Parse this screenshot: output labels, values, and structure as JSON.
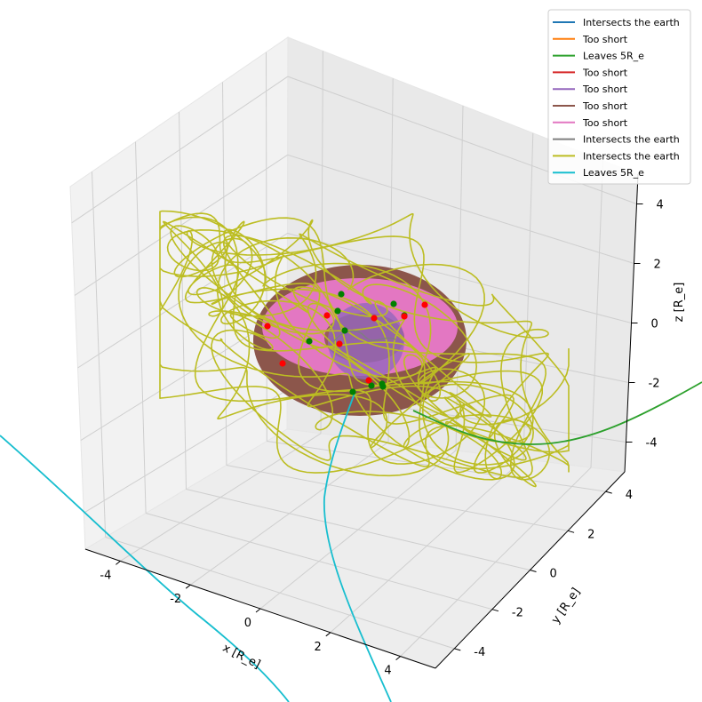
{
  "chart_data": {
    "type": "line",
    "projection": "3d",
    "title": "",
    "xlabel": "x [R_e]",
    "ylabel": "y [R_e]",
    "zlabel": "z [R_e]",
    "xlim": [
      -5,
      5
    ],
    "ylim": [
      -5,
      5
    ],
    "zlim": [
      -5,
      5
    ],
    "x_ticks": [
      "-4",
      "-2",
      "0",
      "2",
      "4"
    ],
    "y_ticks": [
      "-4",
      "-2",
      "0",
      "2",
      "4"
    ],
    "z_ticks": [
      "-4",
      "-2",
      "0",
      "2",
      "4"
    ],
    "grid": true,
    "legend_position": "top-right",
    "series": [
      {
        "name": "Intersects the earth",
        "color": "#1f77b4"
      },
      {
        "name": "Too short",
        "color": "#ff7f0e"
      },
      {
        "name": "Leaves 5R_e",
        "color": "#2ca02c"
      },
      {
        "name": "Too short",
        "color": "#d62728"
      },
      {
        "name": "Too short",
        "color": "#9467bd"
      },
      {
        "name": "Too short",
        "color": "#8c564b"
      },
      {
        "name": "Too short",
        "color": "#e377c2"
      },
      {
        "name": "Intersects the earth",
        "color": "#7f7f7f"
      },
      {
        "name": "Intersects the earth",
        "color": "#bcbd22"
      },
      {
        "name": "Leaves 5R_e",
        "color": "#17becf"
      }
    ],
    "marker_colors": {
      "start": "#008000",
      "end": "#ff0000"
    }
  }
}
